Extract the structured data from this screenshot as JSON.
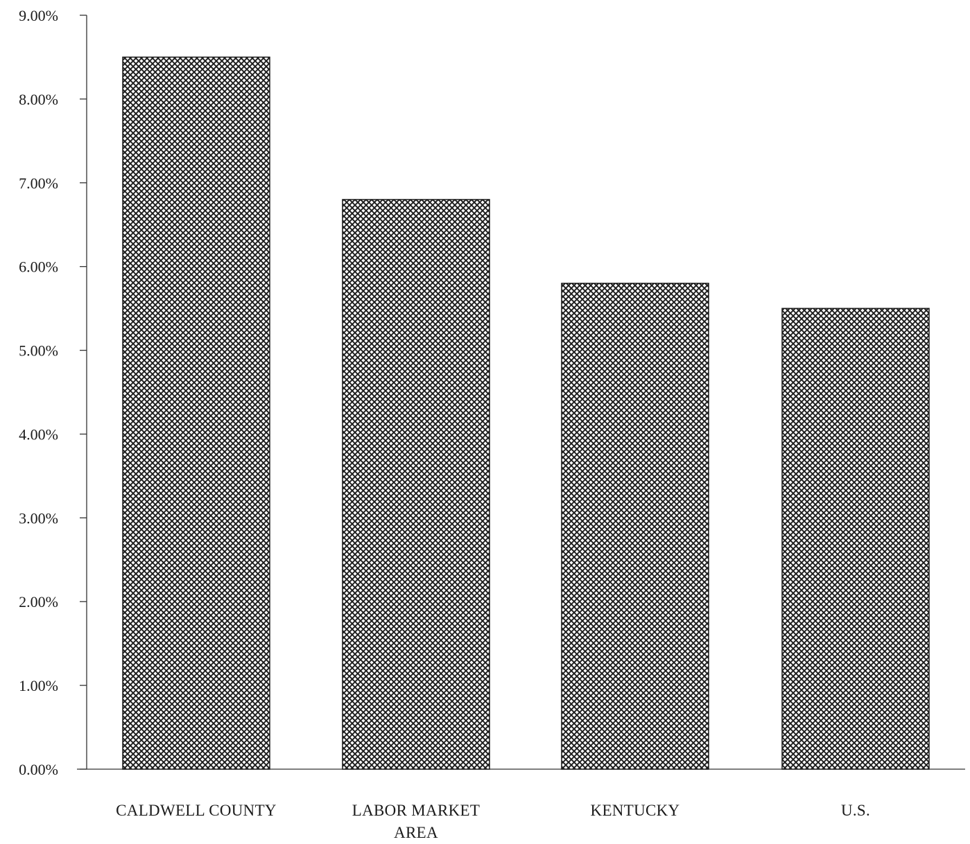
{
  "chart_data": {
    "type": "bar",
    "title": "",
    "xlabel": "",
    "ylabel": "",
    "categories": [
      [
        "CALDWELL COUNTY"
      ],
      [
        "LABOR MARKET",
        "AREA"
      ],
      [
        "KENTUCKY"
      ],
      [
        "U.S."
      ]
    ],
    "values": [
      8.5,
      6.8,
      5.8,
      5.5
    ],
    "ylim": [
      0,
      9
    ],
    "yticks": [
      0,
      1,
      2,
      3,
      4,
      5,
      6,
      7,
      8,
      9
    ],
    "ytick_labels": [
      "0.00%",
      "1.00%",
      "2.00%",
      "3.00%",
      "4.00%",
      "5.00%",
      "6.00%",
      "7.00%",
      "8.00%",
      "9.00%"
    ],
    "grid": false,
    "legend": "none",
    "bar_fill": "crosshatch",
    "colors": {
      "bar_pattern": "#1c1c1c",
      "bar_background": "#ffffff",
      "axis": "#333333"
    }
  }
}
